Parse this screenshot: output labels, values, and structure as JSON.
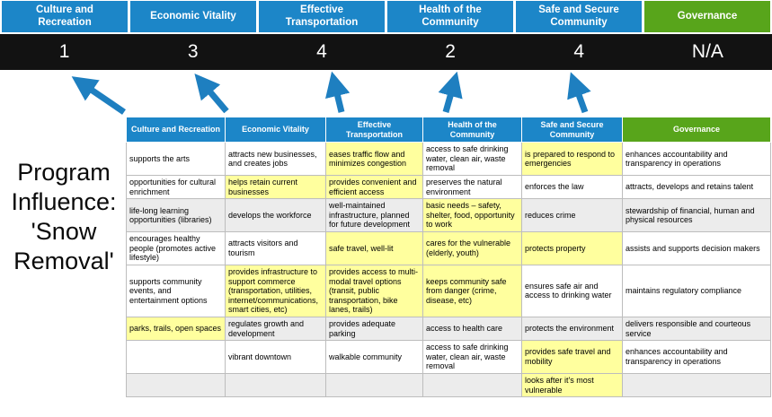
{
  "banner": {
    "columns": [
      {
        "label": "Culture and Recreation",
        "score": "1"
      },
      {
        "label": "Economic Vitality",
        "score": "3"
      },
      {
        "label": "Effective Transportation",
        "score": "4"
      },
      {
        "label": "Health of the Community",
        "score": "2"
      },
      {
        "label": "Safe and Secure Community",
        "score": "4"
      },
      {
        "label": "Governance",
        "score": "N/A"
      }
    ]
  },
  "program": {
    "full_text": "Program Influence: 'Snow Removal'",
    "lines": [
      "Program",
      "Influence:",
      "'Snow",
      "Removal'"
    ]
  },
  "table": {
    "headers": [
      {
        "label": "Culture and Recreation",
        "color": "blue"
      },
      {
        "label": "Economic Vitality",
        "color": "blue"
      },
      {
        "label": "Effective Transportation",
        "color": "blue"
      },
      {
        "label": "Health of the Community",
        "color": "blue"
      },
      {
        "label": "Safe and Secure Community",
        "color": "blue"
      },
      {
        "label": "Governance",
        "color": "green"
      }
    ],
    "rows": [
      {
        "shaded": false,
        "cells": [
          {
            "text": "supports the arts",
            "highlight": false
          },
          {
            "text": "attracts new businesses, and creates jobs",
            "highlight": false
          },
          {
            "text": "eases traffic flow and minimizes congestion",
            "highlight": true
          },
          {
            "text": "access to safe drinking water, clean air, waste removal",
            "highlight": false
          },
          {
            "text": "is prepared to respond to emergencies",
            "highlight": true
          },
          {
            "text": "enhances accountability and transparency in operations",
            "highlight": false
          }
        ]
      },
      {
        "shaded": false,
        "cells": [
          {
            "text": "opportunities for cultural enrichment",
            "highlight": false
          },
          {
            "text": "helps retain current businesses",
            "highlight": true
          },
          {
            "text": "provides convenient and efficient access",
            "highlight": true
          },
          {
            "text": "preserves the natural environment",
            "highlight": false
          },
          {
            "text": "enforces the law",
            "highlight": false
          },
          {
            "text": "attracts, develops and retains talent",
            "highlight": false
          }
        ]
      },
      {
        "shaded": true,
        "cells": [
          {
            "text": "life-long learning opportunities (libraries)",
            "highlight": false
          },
          {
            "text": "develops the workforce",
            "highlight": false
          },
          {
            "text": "well-maintained infrastructure, planned for future development",
            "highlight": false
          },
          {
            "text": "basic needs – safety, shelter, food, opportunity to work",
            "highlight": true
          },
          {
            "text": "reduces crime",
            "highlight": false
          },
          {
            "text": "stewardship of financial, human and physical resources",
            "highlight": false
          }
        ]
      },
      {
        "shaded": false,
        "cells": [
          {
            "text": "encourages healthy people (promotes active lifestyle)",
            "highlight": false
          },
          {
            "text": "attracts visitors and tourism",
            "highlight": false
          },
          {
            "text": "safe travel, well-lit",
            "highlight": true
          },
          {
            "text": "cares for the vulnerable (elderly, youth)",
            "highlight": true
          },
          {
            "text": "protects property",
            "highlight": true
          },
          {
            "text": "assists and supports decision makers",
            "highlight": false
          }
        ]
      },
      {
        "shaded": false,
        "cells": [
          {
            "text": "supports community events, and entertainment options",
            "highlight": false
          },
          {
            "text": "provides infrastructure to support commerce (transportation, utilities, internet/communications, smart cities, etc)",
            "highlight": true
          },
          {
            "text": "provides access to multi-modal travel options (transit, public transportation, bike lanes, trails)",
            "highlight": true
          },
          {
            "text": "keeps community safe from danger (crime, disease, etc)",
            "highlight": true
          },
          {
            "text": "ensures safe air and access to drinking water",
            "highlight": false
          },
          {
            "text": "maintains regulatory compliance",
            "highlight": false
          }
        ]
      },
      {
        "shaded": true,
        "cells": [
          {
            "text": "parks, trails, open spaces",
            "highlight": true
          },
          {
            "text": "regulates growth and development",
            "highlight": false
          },
          {
            "text": "provides adequate parking",
            "highlight": false
          },
          {
            "text": "access to health care",
            "highlight": false
          },
          {
            "text": "protects the environment",
            "highlight": false
          },
          {
            "text": "delivers responsible and courteous service",
            "highlight": false
          }
        ]
      },
      {
        "shaded": false,
        "cells": [
          {
            "text": "",
            "highlight": false
          },
          {
            "text": "vibrant downtown",
            "highlight": false
          },
          {
            "text": "walkable community",
            "highlight": false
          },
          {
            "text": "access to safe drinking water, clean air, waste removal",
            "highlight": false
          },
          {
            "text": "provides safe travel and mobility",
            "highlight": true
          },
          {
            "text": "enhances accountability and transparency in operations",
            "highlight": false
          }
        ]
      },
      {
        "shaded": true,
        "cells": [
          {
            "text": "",
            "highlight": false
          },
          {
            "text": "",
            "highlight": false
          },
          {
            "text": "",
            "highlight": false
          },
          {
            "text": "",
            "highlight": false
          },
          {
            "text": "looks after it's most vulnerable",
            "highlight": true
          },
          {
            "text": "",
            "highlight": false
          }
        ]
      }
    ]
  },
  "colors": {
    "header_blue": "#1c86c8",
    "governance_green": "#58a51b",
    "highlight_yellow": "#ffff9e",
    "score_bar_black": "#121212",
    "arrow_blue": "#1e7fc0"
  }
}
